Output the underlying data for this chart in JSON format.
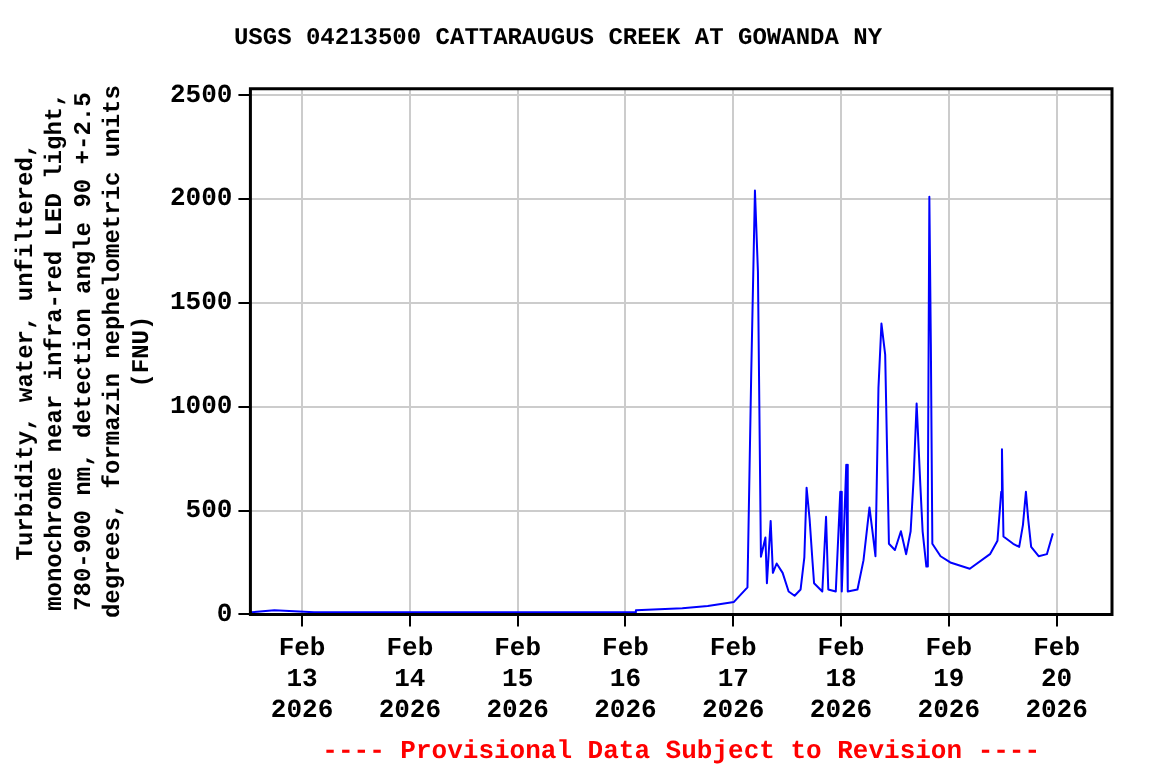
{
  "chart_data": {
    "type": "line",
    "title": "USGS 04213500 CATTARAUGUS CREEK AT GOWANDA NY",
    "ylabel": "Turbidity, water, unfiltered,\nmonochrome near infra-red LED light,\n780-900 nm, detection angle 90 +-2.5\ndegrees, formazin nephelometric units\n(FNU)",
    "annotations": [
      "---- Provisional Data Subject to Revision ----"
    ],
    "x": [
      "2026-02-12T12:40",
      "2026-02-12T17:50",
      "2026-02-13T02:40",
      "2026-02-13T11:20",
      "2026-02-14T00:30",
      "2026-02-14T13:40",
      "2026-02-15T07:10",
      "2026-02-16T02:00",
      "2026-02-16T02:20",
      "2026-02-16T12:40",
      "2026-02-16T18:20",
      "2026-02-17T00:10",
      "2026-02-17T03:10",
      "2026-02-17T04:00",
      "2026-02-17T04:50",
      "2026-02-17T05:30",
      "2026-02-17T06:10",
      "2026-02-17T07:10",
      "2026-02-17T07:30",
      "2026-02-17T08:20",
      "2026-02-17T08:50",
      "2026-02-17T09:40",
      "2026-02-17T11:00",
      "2026-02-17T12:20",
      "2026-02-17T13:40",
      "2026-02-17T15:00",
      "2026-02-17T15:50",
      "2026-02-17T16:20",
      "2026-02-17T17:00",
      "2026-02-17T17:40",
      "2026-02-17T18:00",
      "2026-02-17T19:50",
      "2026-02-17T20:40",
      "2026-02-17T21:10",
      "2026-02-17T22:50",
      "2026-02-17T23:50",
      "2026-02-18T00:10",
      "2026-02-18T01:10",
      "2026-02-18T01:30",
      "2026-02-18T03:40",
      "2026-02-18T05:00",
      "2026-02-18T06:20",
      "2026-02-18T07:00",
      "2026-02-18T07:40",
      "2026-02-18T08:20",
      "2026-02-18T09:00",
      "2026-02-18T09:50",
      "2026-02-18T10:40",
      "2026-02-18T12:00",
      "2026-02-18T13:20",
      "2026-02-18T14:30",
      "2026-02-18T15:30",
      "2026-02-18T16:10",
      "2026-02-18T16:50",
      "2026-02-18T17:40",
      "2026-02-18T18:10",
      "2026-02-18T19:00",
      "2026-02-18T19:20",
      "2026-02-18T19:40",
      "2026-02-18T20:00",
      "2026-02-18T20:20",
      "2026-02-18T22:10",
      "2026-02-19T00:20",
      "2026-02-19T04:40",
      "2026-02-19T09:10",
      "2026-02-19T10:50",
      "2026-02-19T11:40",
      "2026-02-19T11:50",
      "2026-02-19T12:10",
      "2026-02-19T14:20",
      "2026-02-19T15:40",
      "2026-02-19T16:30",
      "2026-02-19T17:10",
      "2026-02-19T17:40",
      "2026-02-19T18:20",
      "2026-02-19T20:00",
      "2026-02-19T21:50",
      "2026-02-19T23:10"
    ],
    "series": [
      {
        "color": "#0000ff",
        "values": [
          10,
          20,
          10,
          10,
          10,
          10,
          10,
          10,
          20,
          30,
          40,
          60,
          130,
          1150,
          2040,
          1650,
          277,
          370,
          150,
          450,
          200,
          245,
          200,
          110,
          90,
          120,
          275,
          610,
          460,
          250,
          150,
          110,
          470,
          120,
          110,
          590,
          110,
          720,
          110,
          120,
          260,
          515,
          400,
          280,
          1090,
          1400,
          1250,
          340,
          310,
          400,
          290,
          400,
          655,
          1015,
          620,
          400,
          230,
          555,
          2010,
          1300,
          340,
          280,
          250,
          220,
          290,
          355,
          590,
          795,
          375,
          340,
          325,
          430,
          590,
          460,
          325,
          280,
          290,
          390
        ]
      }
    ],
    "xlim": [
      "2026-02-12T12:30",
      "2026-02-20T12:20"
    ],
    "xticks": [
      {
        "value": "2026-02-13",
        "label": "Feb 13 2026"
      },
      {
        "value": "2026-02-14",
        "label": "Feb 14 2026"
      },
      {
        "value": "2026-02-15",
        "label": "Feb 15 2026"
      },
      {
        "value": "2026-02-16",
        "label": "Feb 16 2026"
      },
      {
        "value": "2026-02-17",
        "label": "Feb 17 2026"
      },
      {
        "value": "2026-02-18",
        "label": "Feb 18 2026"
      },
      {
        "value": "2026-02-19",
        "label": "Feb 19 2026"
      },
      {
        "value": "2026-02-20",
        "label": "Feb 20 2026"
      }
    ],
    "ylim": [
      0,
      2530
    ],
    "yticks": [
      0,
      500,
      1000,
      1500,
      2000,
      2500
    ],
    "grid": true,
    "legend": false,
    "marker": "none",
    "line_style": "solid"
  }
}
